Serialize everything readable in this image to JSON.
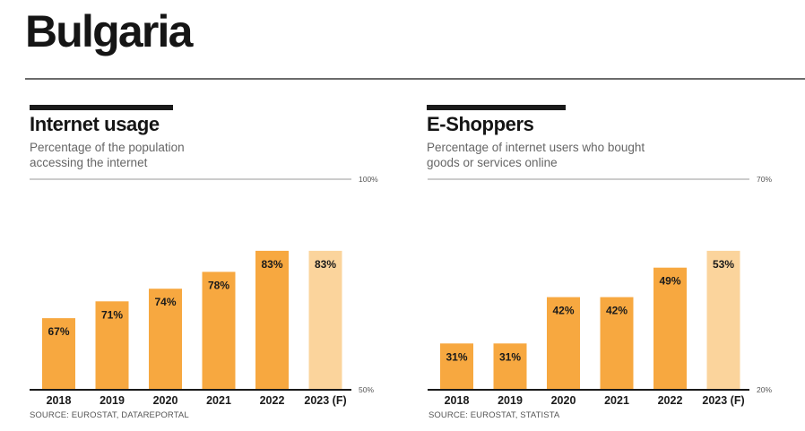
{
  "page": {
    "title": "Bulgaria"
  },
  "colors": {
    "bar": "#f7a840",
    "forecast_bar": "#fbd49c",
    "text": "#1a1a1a",
    "rule": "#6b6b6b",
    "muted": "#666666"
  },
  "charts": [
    {
      "title": "Internet usage",
      "subtitle_lines": [
        "Percentage of the population",
        "accessing the internet"
      ],
      "source": "SOURCE: EUROSTAT, DATAREPORTAL"
    },
    {
      "title": "E-Shoppers",
      "subtitle_lines": [
        "Percentage of internet users who bought",
        "goods or services online"
      ],
      "source": "SOURCE: EUROSTAT, STATISTA"
    }
  ],
  "chart_data": [
    {
      "type": "bar",
      "title": "Internet usage",
      "categories": [
        "2018",
        "2019",
        "2020",
        "2021",
        "2022",
        "2023 (F)"
      ],
      "values": [
        67,
        71,
        74,
        78,
        83,
        83
      ],
      "value_labels": [
        "67%",
        "71%",
        "74%",
        "78%",
        "83%",
        "83%"
      ],
      "forecast": [
        false,
        false,
        false,
        false,
        false,
        true
      ],
      "ylim": [
        50,
        100
      ],
      "scale_labels": {
        "min": "50%",
        "max": "100%"
      },
      "grid": false,
      "legend": "none"
    },
    {
      "type": "bar",
      "title": "E-Shoppers",
      "categories": [
        "2018",
        "2019",
        "2020",
        "2021",
        "2022",
        "2023 (F)"
      ],
      "values": [
        31,
        31,
        42,
        42,
        49,
        53
      ],
      "value_labels": [
        "31%",
        "31%",
        "42%",
        "42%",
        "49%",
        "53%"
      ],
      "forecast": [
        false,
        false,
        false,
        false,
        false,
        true
      ],
      "ylim": [
        20,
        70
      ],
      "scale_labels": {
        "min": "20%",
        "max": "70%"
      },
      "grid": false,
      "legend": "none"
    }
  ]
}
